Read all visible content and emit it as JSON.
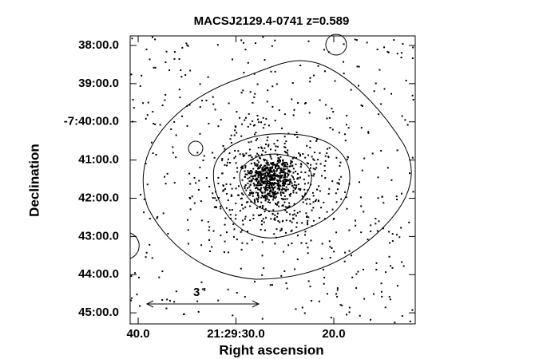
{
  "chart_data": {
    "type": "image",
    "title": "MACSJ2129.4-0741 z=0.589",
    "xlabel": "Right ascension",
    "ylabel": "Declination",
    "xlim": [
      40.82,
      11.67
    ],
    "ylim": [
      45.29,
      37.75
    ],
    "xticks": [
      {
        "value": 40,
        "label": "40.0"
      },
      {
        "value": 30,
        "label": "21:29:30.0"
      },
      {
        "value": 20,
        "label": "20.0"
      }
    ],
    "yticks": [
      {
        "value": 38,
        "label": "38:00.0"
      },
      {
        "value": 39,
        "label": "39:00.0"
      },
      {
        "value": 40,
        "label": "-7:40:00.0"
      },
      {
        "value": 41,
        "label": "41:00.0"
      },
      {
        "value": 42,
        "label": "42:00.0"
      },
      {
        "value": 43,
        "label": "43:00.0"
      },
      {
        "value": 44,
        "label": "44:00.0"
      },
      {
        "value": 45,
        "label": "45:00.0"
      }
    ],
    "annotation": "3 '"
  }
}
